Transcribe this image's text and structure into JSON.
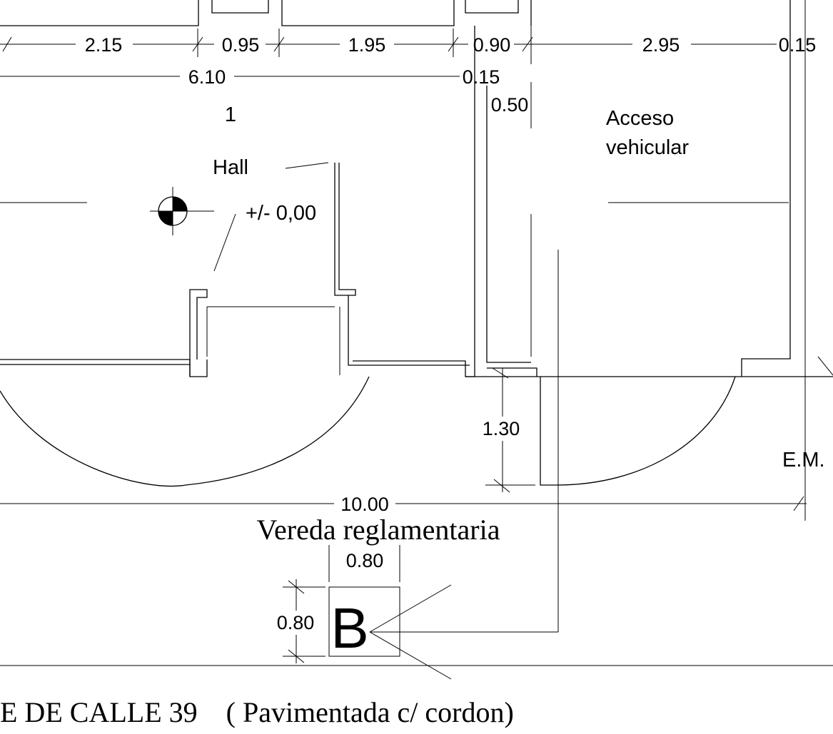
{
  "dimensions": {
    "top_row": [
      "2.15",
      "0.95",
      "1.95",
      "0.90",
      "2.95",
      "0.15"
    ],
    "second_row_total": "6.10",
    "second_row_wall": "0.15",
    "wall_offset": "0.50",
    "sidewalk_depth": "1.30",
    "lot_width": "10.00",
    "box_width": "0.80",
    "box_height": "0.80"
  },
  "labels": {
    "room_number": "1",
    "room_name": "Hall",
    "level": "+/- 0,00",
    "vehicle_access_line1": "Acceso",
    "vehicle_access_line2": "vehicular",
    "em": "E.M.",
    "sidewalk": "Vereda reglamentaria",
    "marker": "B",
    "street": "E DE CALLE 39    ( Pavimentada c/ cordon)"
  },
  "colors": {
    "line": "#000000",
    "background": "#ffffff"
  }
}
